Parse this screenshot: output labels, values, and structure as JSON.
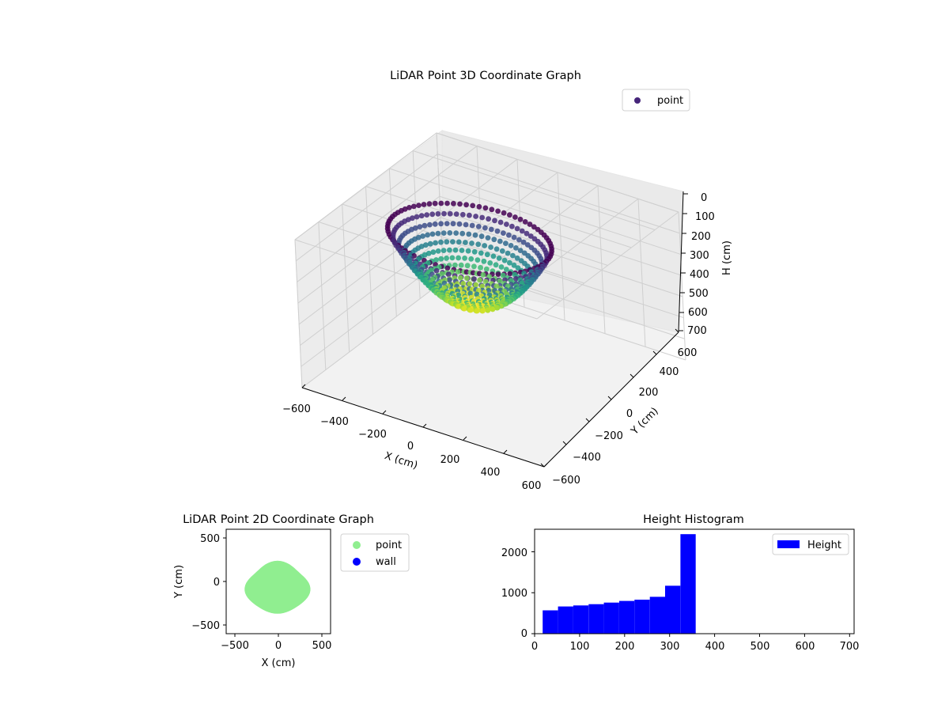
{
  "colors": {
    "viridis_dark": "#440154",
    "viridis_mid": "#21918c",
    "viridis_light": "#fde725",
    "point_2d": "#90ee90",
    "wall_2d": "#0000ff",
    "histogram_bar": "#0000ff",
    "pane": "#f2f2f2",
    "grid": "#cfcfcf"
  },
  "chart_data": [
    {
      "type": "scatter",
      "projection": "3d",
      "title": "LiDAR Point 3D Coordinate Graph",
      "xlabel": "X (cm)",
      "ylabel": "Y (cm)",
      "zlabel": "H (cm)",
      "xlim": [
        -600,
        600
      ],
      "ylim": [
        -600,
        600
      ],
      "zlim": [
        700,
        0
      ],
      "z_inverted": true,
      "xticks": [
        "−600",
        "−400",
        "−200",
        "0",
        "200",
        "400",
        "600"
      ],
      "yticks": [
        "−600",
        "−400",
        "−200",
        "0",
        "200",
        "400",
        "600"
      ],
      "zticks": [
        "0",
        "100",
        "200",
        "300",
        "400",
        "500",
        "600",
        "700"
      ],
      "colormap": "viridis",
      "grid": true,
      "legend": {
        "position": "top-right",
        "entries": [
          "point"
        ]
      },
      "series": [
        {
          "name": "point",
          "shape": "bowl",
          "center": [
            -40,
            -80
          ],
          "radius_x": 370,
          "radius_y": 290,
          "rim_height": 40,
          "bottom_height": 360
        }
      ]
    },
    {
      "type": "scatter",
      "title": "LiDAR Point 2D Coordinate Graph",
      "xlabel": "X (cm)",
      "ylabel": "Y (cm)",
      "xlim": [
        -600,
        600
      ],
      "ylim": [
        -600,
        600
      ],
      "xticks": [
        "−500",
        "0",
        "500"
      ],
      "yticks": [
        "−500",
        "0",
        "500"
      ],
      "legend": {
        "position": "outside-right",
        "entries": [
          "point",
          "wall"
        ]
      },
      "series": [
        {
          "name": "point",
          "color": "#90ee90",
          "fill_region": "blob",
          "center": [
            -10,
            -75
          ],
          "radius_x": 360,
          "radius_y": 290
        },
        {
          "name": "wall",
          "color": "#0000ff",
          "points": []
        }
      ]
    },
    {
      "type": "bar",
      "subtype": "histogram",
      "title": "Height Histogram",
      "xlim": [
        0,
        710
      ],
      "ylim": [
        0,
        2550
      ],
      "xticks": [
        "0",
        "100",
        "200",
        "300",
        "400",
        "500",
        "600",
        "700"
      ],
      "yticks": [
        "0",
        "1000",
        "2000"
      ],
      "legend": {
        "position": "top-right",
        "entries": [
          "Height"
        ]
      },
      "bin_edges": [
        18,
        52,
        86,
        120,
        154,
        188,
        222,
        256,
        290,
        324,
        358
      ],
      "series": [
        {
          "name": "Height",
          "color": "#0000ff",
          "values": [
            570,
            665,
            690,
            720,
            760,
            800,
            830,
            900,
            1170,
            2430
          ]
        }
      ]
    }
  ]
}
